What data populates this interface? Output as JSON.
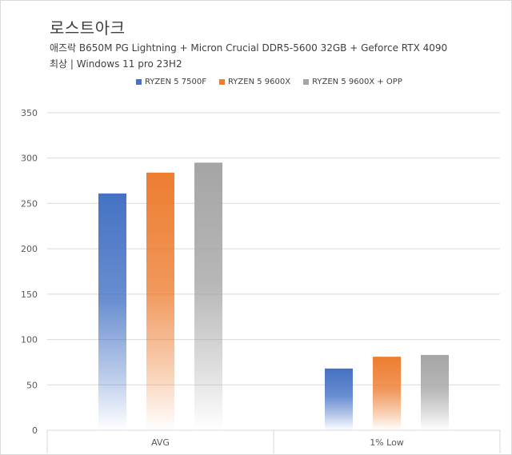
{
  "chart_data": {
    "type": "bar",
    "title": "로스트아크",
    "subtitle_lines": [
      "애즈락 B650M PG Lightning + Micron Crucial DDR5-5600 32GB + Geforce RTX 4090",
      "최상 | Windows 11 pro 23H2"
    ],
    "categories": [
      "AVG",
      "1% Low"
    ],
    "series": [
      {
        "name": "RYZEN 5 7500F",
        "values": [
          261,
          68
        ],
        "color": "#4472c4"
      },
      {
        "name": "RYZEN 5 9600X",
        "values": [
          284,
          81
        ],
        "color": "#ed7d31"
      },
      {
        "name": "RYZEN 5 9600X + OPP",
        "values": [
          295,
          83
        ],
        "color": "#a5a5a5"
      }
    ],
    "ylim": [
      0,
      350
    ],
    "y_ticks": [
      0,
      50,
      100,
      150,
      200,
      250,
      300,
      350
    ],
    "xlabel": "",
    "ylabel": "",
    "grid": true,
    "legend_position": "top"
  }
}
